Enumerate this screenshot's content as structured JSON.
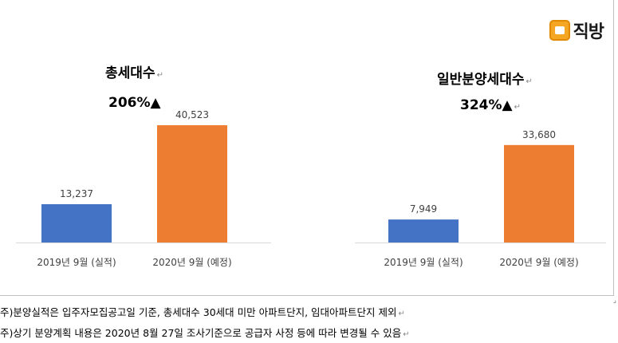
{
  "brand": {
    "name": "직방",
    "icon": "house-icon",
    "color": "#f5a623"
  },
  "colors": {
    "actual": "#4472c4",
    "planned": "#ed7d31"
  },
  "chart_data": [
    {
      "type": "bar",
      "title": "총세대수",
      "change": "206%▲",
      "categories": [
        "2019년 9월 (실적)",
        "2020년 9월 (예정)"
      ],
      "values": [
        13237,
        40523
      ],
      "value_labels": [
        "13,237",
        "40,523"
      ]
    },
    {
      "type": "bar",
      "title": "일반분양세대수",
      "change": "324%▲",
      "categories": [
        "2019년 9월 (실적)",
        "2020년 9월 (예정)"
      ],
      "values": [
        7949,
        33680
      ],
      "value_labels": [
        "7,949",
        "33,680"
      ]
    }
  ],
  "notes": [
    "주)분양실적은 입주자모집공고일 기준, 총세대수 30세대 미만 아파트단지, 임대아파트단지 제외",
    "주)상기 분양계획 내용은 2020년 8월 27일 조사기준으로 공급자 사정 등에 따라 변경될 수 있음"
  ]
}
